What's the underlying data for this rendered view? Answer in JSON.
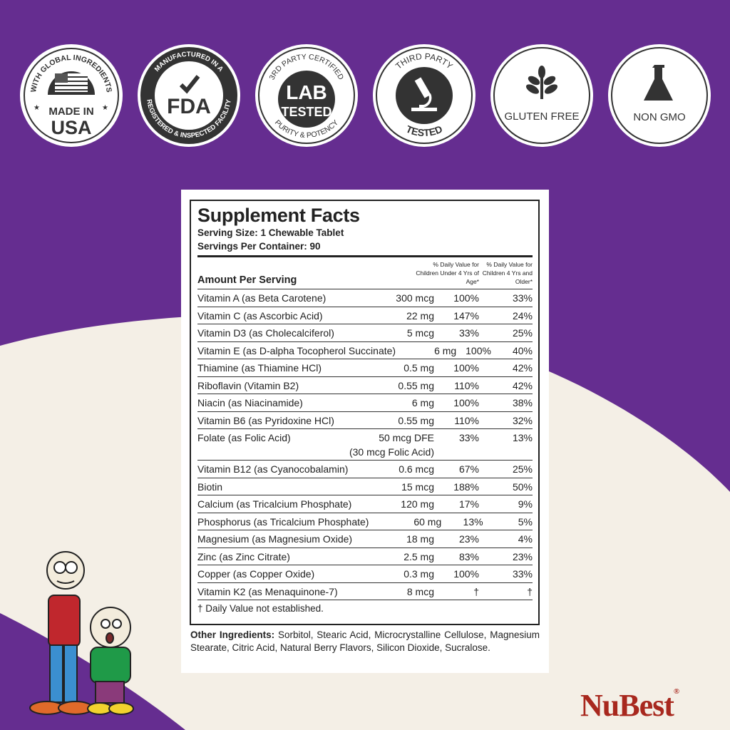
{
  "colors": {
    "purple": "#652d90",
    "cream": "#f4efe6",
    "ink": "#222222",
    "brand_red": "#a8281e",
    "leaf": "#8ab63f"
  },
  "badges": [
    {
      "top_text": "WITH GLOBAL INGREDIENTS",
      "line1": "MADE IN",
      "line2": "USA",
      "icon": "us-flag-icon"
    },
    {
      "top_text": "MANUFACTURED IN A",
      "bottom_text": "REGISTERED & INSPECTED FACILITY",
      "line1": "FDA",
      "icon": "checkmark-icon"
    },
    {
      "top_text": "3RD PARTY CERTIFIED",
      "bottom_text": "PURITY & POTENCY",
      "line1": "LAB",
      "line2": "TESTED"
    },
    {
      "top_text": "THIRD PARTY",
      "bottom_text": "TESTED",
      "icon": "microscope-icon"
    },
    {
      "line1": "GLUTEN FREE",
      "icon": "wheat-icon"
    },
    {
      "line1": "NON GMO",
      "icon": "flask-icon"
    }
  ],
  "facts": {
    "title": "Supplement Facts",
    "serving_size": "Serving Size: 1 Chewable Tablet",
    "servings_per_container": "Servings Per Container: 90",
    "amount_header": "Amount Per Serving",
    "dv_under4": "% Daily Value for Children Under 4 Yrs of Age*",
    "dv_4plus": "% Daily Value for Children 4 Yrs and Older*",
    "rows": [
      {
        "name": "Vitamin A (as Beta Carotene)",
        "amount": "300 mcg",
        "dv1": "100%",
        "dv2": "33%"
      },
      {
        "name": "Vitamin C (as Ascorbic Acid)",
        "amount": "22 mg",
        "dv1": "147%",
        "dv2": "24%"
      },
      {
        "name": "Vitamin D3 (as Cholecalciferol)",
        "amount": "5 mcg",
        "dv1": "33%",
        "dv2": "25%"
      },
      {
        "name": "Vitamin E (as D-alpha Tocopherol Succinate)",
        "amount": "6 mg",
        "dv1": "100%",
        "dv2": "40%"
      },
      {
        "name": "Thiamine (as Thiamine HCl)",
        "amount": "0.5 mg",
        "dv1": "100%",
        "dv2": "42%"
      },
      {
        "name": "Riboflavin (Vitamin B2)",
        "amount": "0.55 mg",
        "dv1": "110%",
        "dv2": "42%"
      },
      {
        "name": "Niacin (as Niacinamide)",
        "amount": "6 mg",
        "dv1": "100%",
        "dv2": "38%"
      },
      {
        "name": "Vitamin B6 (as Pyridoxine HCl)",
        "amount": "0.55 mg",
        "dv1": "110%",
        "dv2": "32%"
      },
      {
        "name": "Folate (as Folic Acid)",
        "amount": "50 mcg DFE",
        "amount2": "(30 mcg Folic Acid)",
        "dv1": "33%",
        "dv2": "13%"
      },
      {
        "name": "Vitamin B12 (as Cyanocobalamin)",
        "amount": "0.6 mcg",
        "dv1": "67%",
        "dv2": "25%"
      },
      {
        "name": "Biotin",
        "amount": "15 mcg",
        "dv1": "188%",
        "dv2": "50%"
      },
      {
        "name": "Calcium (as Tricalcium Phosphate)",
        "amount": "120 mg",
        "dv1": "17%",
        "dv2": "9%"
      },
      {
        "name": "Phosphorus (as Tricalcium Phosphate)",
        "amount": "60 mg",
        "dv1": "13%",
        "dv2": "5%"
      },
      {
        "name": "Magnesium (as Magnesium Oxide)",
        "amount": "18 mg",
        "dv1": "23%",
        "dv2": "4%"
      },
      {
        "name": "Zinc (as Zinc Citrate)",
        "amount": "2.5 mg",
        "dv1": "83%",
        "dv2": "23%"
      },
      {
        "name": "Copper (as Copper Oxide)",
        "amount": "0.3 mg",
        "dv1": "100%",
        "dv2": "33%"
      },
      {
        "name": "Vitamin K2 (as Menaquinone-7)",
        "amount": "8 mcg",
        "dv1": "†",
        "dv2": "†"
      }
    ],
    "footnote": "† Daily Value not established."
  },
  "other_ingredients": {
    "label": "Other Ingredients:",
    "text": " Sorbitol, Stearic Acid, Microcrystalline Cellulose, Magnesium Stearate, Citric Acid, Natural Berry Flavors, Silicon Dioxide, Sucralose."
  },
  "brand": {
    "name": "NuBest",
    "reg": "®"
  }
}
